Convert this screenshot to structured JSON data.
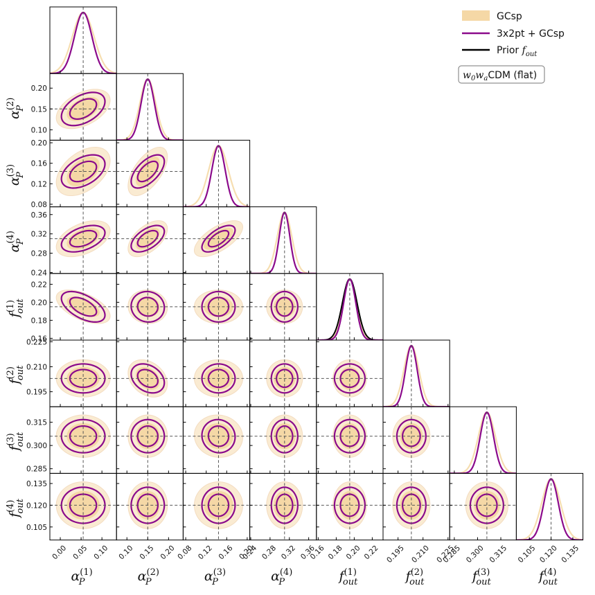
{
  "chart_data": {
    "type": "corner",
    "params": [
      {
        "name": "alpha_P^(1)",
        "symbol": "α",
        "sub": "P",
        "sup": "(1)",
        "fiducial": 0.055,
        "range": [
          -0.025,
          0.135
        ],
        "ticks": [
          0.0,
          0.05,
          0.1
        ],
        "tick_labels": [
          "0.00",
          "0.05",
          "0.10"
        ],
        "sigma_gc": 0.026,
        "sigma_comb": 0.021
      },
      {
        "name": "alpha_P^(2)",
        "symbol": "α",
        "sub": "P",
        "sup": "(2)",
        "fiducial": 0.15,
        "range": [
          0.075,
          0.235
        ],
        "ticks": [
          0.1,
          0.15,
          0.2
        ],
        "tick_labels": [
          "0.10",
          "0.15",
          "0.20"
        ],
        "sigma_gc": 0.019,
        "sigma_comb": 0.016
      },
      {
        "name": "alpha_P^(3)",
        "symbol": "α",
        "sub": "P",
        "sup": "(3)",
        "fiducial": 0.144,
        "range": [
          0.075,
          0.205
        ],
        "ticks": [
          0.08,
          0.12,
          0.16,
          0.2
        ],
        "tick_labels": [
          "0.08",
          "0.12",
          "0.16",
          "0.20"
        ],
        "sigma_gc": 0.019,
        "sigma_comb": 0.013
      },
      {
        "name": "alpha_P^(4)",
        "symbol": "α",
        "sub": "P",
        "sup": "(4)",
        "fiducial": 0.31,
        "range": [
          0.238,
          0.376
        ],
        "ticks": [
          0.24,
          0.28,
          0.32,
          0.36
        ],
        "tick_labels": [
          "0.24",
          "0.28",
          "0.32",
          "0.36"
        ],
        "sigma_gc": 0.015,
        "sigma_comb": 0.011
      },
      {
        "name": "f_out^(1)",
        "symbol": "f",
        "sub": "out",
        "sup": "(1)",
        "fiducial": 0.195,
        "range": [
          0.158,
          0.232
        ],
        "ticks": [
          0.16,
          0.18,
          0.2,
          0.22
        ],
        "tick_labels": [
          "0.16",
          "0.18",
          "0.20",
          "0.22"
        ],
        "sigma_gc": 0.0075,
        "sigma_comb": 0.0068
      },
      {
        "name": "f_out^(2)",
        "symbol": "f",
        "sub": "out",
        "sup": "(2)",
        "fiducial": 0.203,
        "range": [
          0.186,
          0.226
        ],
        "ticks": [
          0.195,
          0.21,
          0.225
        ],
        "tick_labels": [
          "0.195",
          "0.210",
          "0.225"
        ],
        "sigma_gc": 0.0045,
        "sigma_comb": 0.0035
      },
      {
        "name": "f_out^(3)",
        "symbol": "f",
        "sub": "out",
        "sup": "(3)",
        "fiducial": 0.306,
        "range": [
          0.282,
          0.325
        ],
        "ticks": [
          0.285,
          0.3,
          0.315
        ],
        "tick_labels": [
          "0.285",
          "0.300",
          "0.315"
        ],
        "sigma_gc": 0.0055,
        "sigma_comb": 0.0043
      },
      {
        "name": "f_out^(4)",
        "symbol": "f",
        "sub": "out",
        "sup": "(4)",
        "fiducial": 0.12,
        "range": [
          0.096,
          0.142
        ],
        "ticks": [
          0.105,
          0.12,
          0.135
        ],
        "tick_labels": [
          "0.105",
          "0.120",
          "0.135"
        ],
        "sigma_gc": 0.0065,
        "sigma_comb": 0.005
      }
    ],
    "correlations": {
      "1-0": 0.45,
      "2-0": 0.45,
      "2-1": 0.6,
      "3-0": 0.45,
      "3-1": 0.55,
      "3-2": 0.65,
      "4-0": -0.55,
      "4-1": -0.05,
      "4-2": 0.0,
      "4-3": 0.0,
      "5-0": 0.0,
      "5-1": -0.3,
      "5-2": 0.0,
      "5-3": 0.0,
      "5-4": 0.0,
      "6-0": 0.0,
      "6-1": 0.0,
      "6-2": -0.05,
      "6-3": 0.0,
      "6-4": 0.0,
      "6-5": 0.0,
      "7-0": 0.0,
      "7-1": 0.0,
      "7-2": 0.0,
      "7-3": 0.0,
      "7-4": 0.0,
      "7-5": 0.0,
      "7-6": 0.0
    },
    "prior_fout": {
      "param_index": 4,
      "sigma": 0.0082
    },
    "series": [
      {
        "name": "GCsp",
        "color": "#f6deb0",
        "fill": "#f5d8a6"
      },
      {
        "name": "3x2pt + GCsp",
        "color": "#8b0a8b"
      },
      {
        "name": "Prior",
        "label_math": "f",
        "label_sub": "out",
        "color": "#000000"
      }
    ],
    "model_label": {
      "w0": "w",
      "w0_sub": "0",
      "wa": "w",
      "wa_sub": "a",
      "text": "CDM (flat)"
    },
    "colors": {
      "fiducial_line": "#555555",
      "frame": "#000000"
    }
  }
}
